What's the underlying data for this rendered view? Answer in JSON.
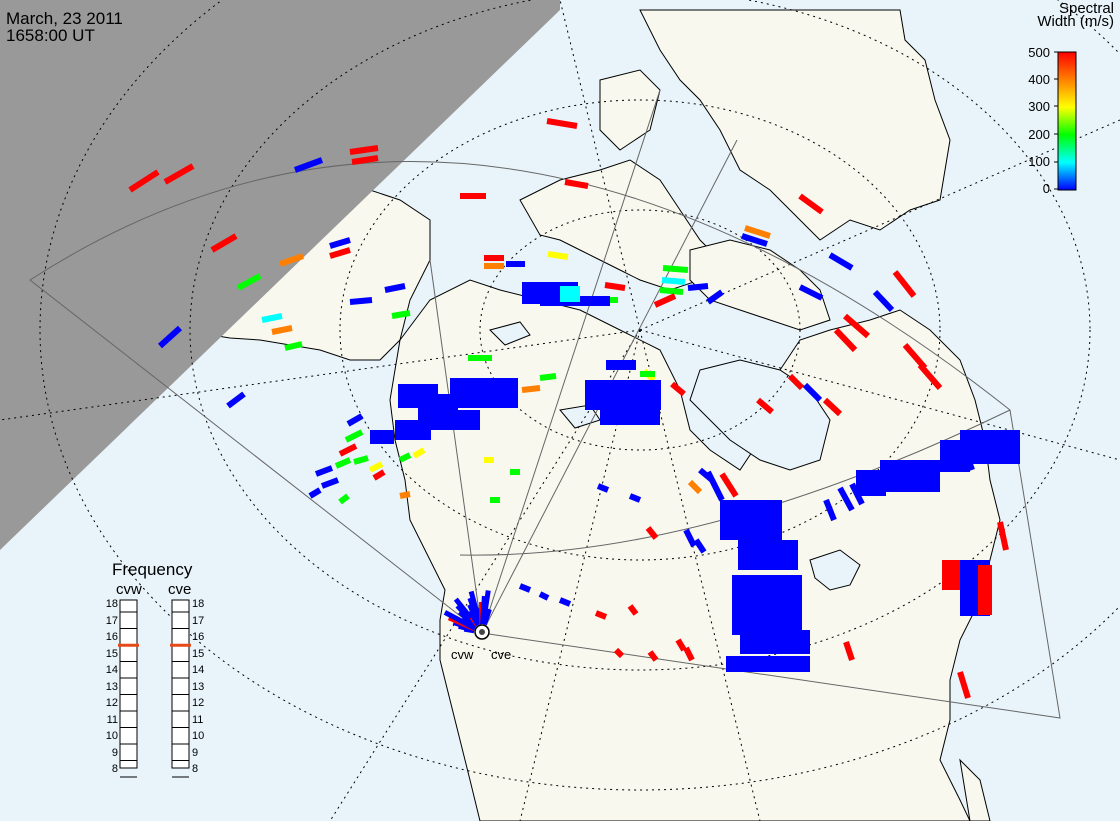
{
  "header": {
    "date": "March, 23 2011",
    "time": "1658:00 UT"
  },
  "legend": {
    "title_line1": "Spectral",
    "title_line2": "Width (m/s)",
    "ticks": [
      "500",
      "400",
      "300",
      "200",
      "100",
      "0"
    ]
  },
  "frequency_panel": {
    "title": "Frequency",
    "radars": [
      {
        "name": "cvw",
        "frequency_mhz": 15.5,
        "marker_color": "#e64a19"
      },
      {
        "name": "cve",
        "frequency_mhz": 15.5,
        "marker_color": "#e64a19"
      }
    ],
    "scale": [
      "18",
      "17",
      "16",
      "15",
      "14",
      "13",
      "12",
      "11",
      "10",
      "9",
      "8"
    ]
  },
  "site_labels": [
    "cvw",
    "cve"
  ],
  "colors": {
    "ocean": "#e8f4fa",
    "land": "#f8f8ef",
    "night": "#999999",
    "velocity_scale": [
      "#0000ff",
      "#00ffff",
      "#00ff00",
      "#ffff00",
      "#ff8000",
      "#ff0000"
    ]
  }
}
